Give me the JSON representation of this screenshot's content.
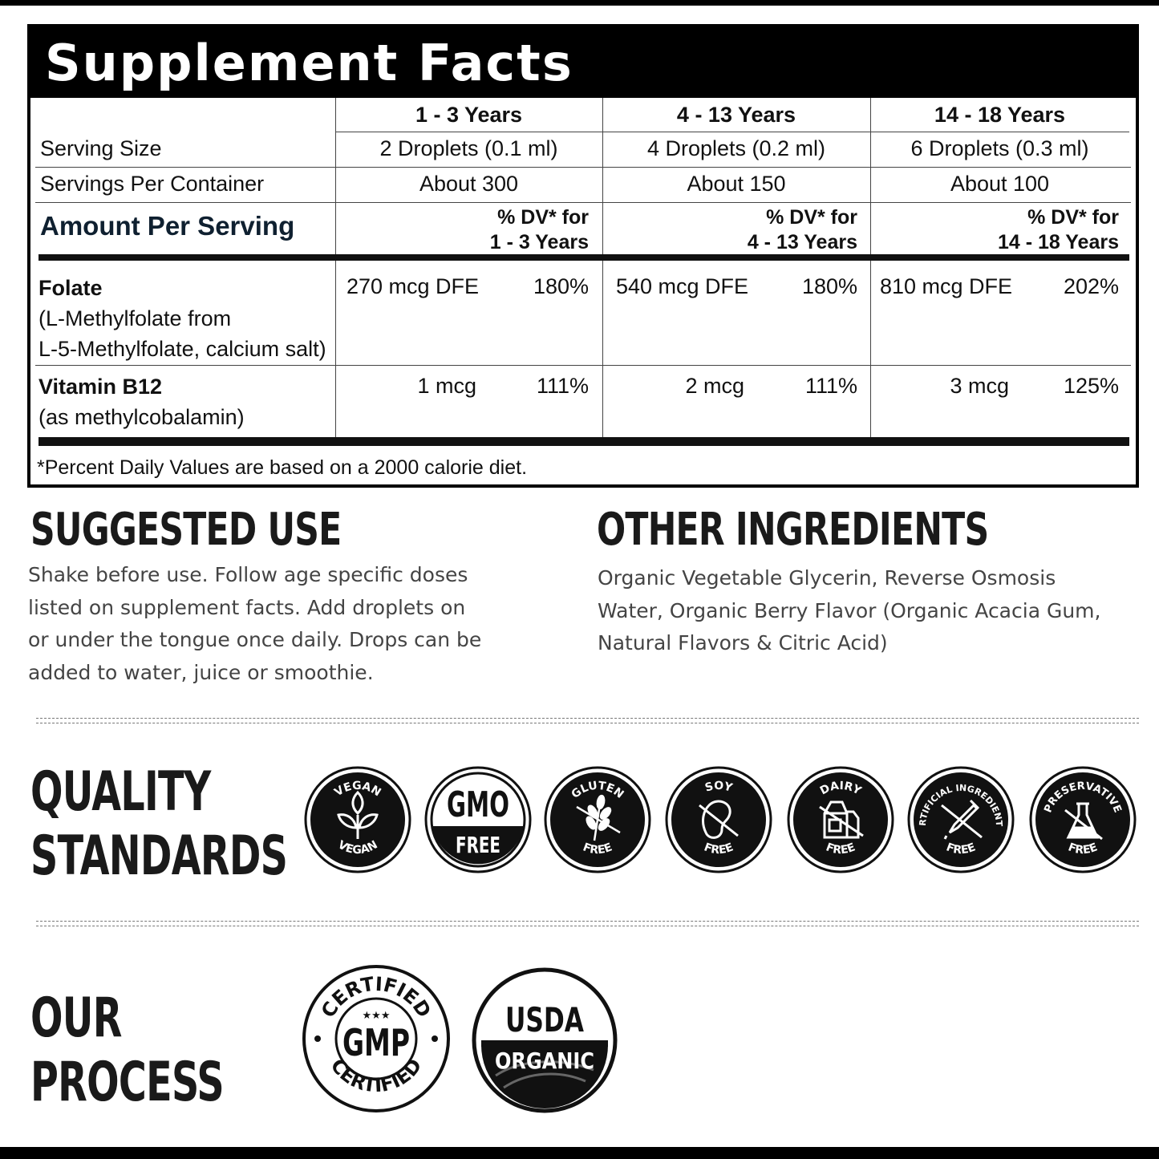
{
  "facts": {
    "title": "Supplement Facts",
    "age_groups": [
      "1 - 3 Years",
      "4 - 13 Years",
      "14 - 18 Years"
    ],
    "serving_size_label": "Serving Size",
    "serving_sizes": [
      "2 Droplets (0.1 ml)",
      "4 Droplets (0.2 ml)",
      "6 Droplets (0.3 ml)"
    ],
    "servings_label": "Servings Per Container",
    "servings": [
      "About 300",
      "About 150",
      "About 100"
    ],
    "amount_label": "Amount Per Serving",
    "dv_line1": "% DV* for",
    "rows": [
      {
        "name": "Folate",
        "sub1": "(L-Methylfolate from",
        "sub2": "L-5-Methylfolate, calcium salt)",
        "amounts": [
          "270 mcg DFE",
          "540 mcg DFE",
          "810 mcg DFE"
        ],
        "dv": [
          "180%",
          "180%",
          "202%"
        ]
      },
      {
        "name": "Vitamin B12",
        "sub1": "(as methylcobalamin)",
        "amounts": [
          "1 mcg",
          "2 mcg",
          "3 mcg"
        ],
        "dv": [
          "111%",
          "111%",
          "125%"
        ]
      }
    ],
    "footnote": "*Percent Daily Values are based on a 2000 calorie diet."
  },
  "suggested_use": {
    "title": "SUGGESTED USE",
    "lines": [
      "Shake before use. Follow age specific doses",
      "listed on supplement facts. Add droplets on",
      "or under the tongue once daily. Drops can be",
      "added to water, juice or smoothie."
    ]
  },
  "other_ingredients": {
    "title": "OTHER INGREDIENTS",
    "lines": [
      "Organic Vegetable Glycerin, Reverse Osmosis",
      "Water, Organic Berry Flavor (Organic Acacia Gum,",
      "Natural Flavors & Citric Acid)"
    ]
  },
  "quality": {
    "title1": "QUALITY",
    "title2": "STANDARDS",
    "badges": [
      {
        "icon": "vegan-leaf-icon",
        "top": "VEGAN",
        "bottom": "VEGAN"
      },
      {
        "icon": "gmo-free-icon",
        "top": "GMO",
        "bottom": "FREE"
      },
      {
        "icon": "wheat-icon",
        "top": "GLUTEN",
        "bottom": "FREE"
      },
      {
        "icon": "soybean-icon",
        "top": "SOY",
        "bottom": "FREE"
      },
      {
        "icon": "milk-carton-icon",
        "top": "DAIRY",
        "bottom": "FREE"
      },
      {
        "icon": "dropper-icon",
        "top": "ARTIFICIAL INGREDIENTS",
        "bottom": "FREE"
      },
      {
        "icon": "flask-icon",
        "top": "PRESERVATIVE",
        "bottom": "FREE"
      }
    ]
  },
  "process": {
    "title1": "OUR",
    "title2": "PROCESS",
    "gmp": {
      "top": "CERTIFIED",
      "center": "GMP",
      "bottom": "CERTIFIED"
    },
    "usda": {
      "top": "USDA",
      "bottom": "ORGANIC"
    }
  },
  "colors": {
    "ink": "#111111",
    "paper": "#ffffff",
    "body_text": "#444444"
  }
}
